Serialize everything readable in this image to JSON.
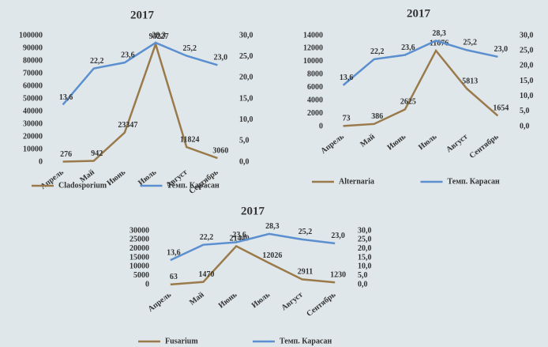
{
  "chart_data": [
    {
      "type": "line",
      "title": "2017",
      "categories": [
        "Апрель",
        "Май",
        "Июнь",
        "Июль",
        "Август",
        "Сентябрь"
      ],
      "series": [
        {
          "name": "Cladosporium",
          "color": "#9a7a4a",
          "values": [
            276,
            942,
            23347,
            93227,
            11824,
            3060
          ]
        },
        {
          "name": "Темп. Карасан",
          "color": "#5b8fd0",
          "axis": "y2",
          "values": [
            13.6,
            22.2,
            23.6,
            28.3,
            25.2,
            23.0
          ],
          "value_labels": [
            "13,6",
            "22,2",
            "23,6",
            "28,3",
            "25,2",
            "23,0"
          ]
        }
      ],
      "ylim": [
        0,
        100000
      ],
      "yticks": [
        0,
        10000,
        20000,
        30000,
        40000,
        50000,
        60000,
        70000,
        80000,
        90000,
        100000
      ],
      "y2lim": [
        0,
        30
      ],
      "y2ticks": [
        {
          "value": 0,
          "label": "0,0"
        },
        {
          "value": 5,
          "label": "5,0"
        },
        {
          "value": 10,
          "label": "10,0"
        },
        {
          "value": 15,
          "label": "15,0"
        },
        {
          "value": 20,
          "label": "20,0"
        },
        {
          "value": 25,
          "label": "25,0"
        },
        {
          "value": 30,
          "label": "30,0"
        }
      ],
      "legend": "bottom"
    },
    {
      "type": "line",
      "title": "2017",
      "categories": [
        "Апрель",
        "Май",
        "Июнь",
        "Июль",
        "Август",
        "Сентябрь"
      ],
      "series": [
        {
          "name": "Alternaria",
          "color": "#9a7a4a",
          "values": [
            73,
            386,
            2625,
            11676,
            5813,
            1654
          ]
        },
        {
          "name": "Темп. Карасан",
          "color": "#5b8fd0",
          "axis": "y2",
          "values": [
            13.6,
            22.2,
            23.6,
            28.3,
            25.2,
            23.0
          ],
          "value_labels": [
            "13,6",
            "22,2",
            "23,6",
            "28,3",
            "25,2",
            "23,0"
          ]
        }
      ],
      "ylim": [
        0,
        14000
      ],
      "yticks": [
        0,
        2000,
        4000,
        6000,
        8000,
        10000,
        12000,
        14000
      ],
      "y2lim": [
        0,
        30
      ],
      "y2ticks": [
        {
          "value": 0,
          "label": "0,0"
        },
        {
          "value": 5,
          "label": "5,0"
        },
        {
          "value": 10,
          "label": "10,0"
        },
        {
          "value": 15,
          "label": "15,0"
        },
        {
          "value": 20,
          "label": "20,0"
        },
        {
          "value": 25,
          "label": "25,0"
        },
        {
          "value": 30,
          "label": "30,0"
        }
      ],
      "legend": "bottom"
    },
    {
      "type": "line",
      "title": "2017",
      "categories": [
        "Апрель",
        "Май",
        "Июнь",
        "Июль",
        "Август",
        "Сентябрь"
      ],
      "series": [
        {
          "name": "Fusarium",
          "color": "#9a7a4a",
          "values": [
            63,
            1470,
            21440,
            12026,
            2911,
            1230
          ]
        },
        {
          "name": "Темп. Карасан",
          "color": "#5b8fd0",
          "axis": "y2",
          "values": [
            13.6,
            22.2,
            23.6,
            28.3,
            25.2,
            23.0
          ],
          "value_labels": [
            "13,6",
            "22,2",
            "23,6",
            "28,3",
            "25,2",
            "23,0"
          ]
        }
      ],
      "ylim": [
        0,
        30000
      ],
      "yticks": [
        0,
        5000,
        10000,
        15000,
        20000,
        25000,
        30000
      ],
      "y2lim": [
        0,
        30
      ],
      "y2ticks": [
        {
          "value": 0,
          "label": "0,0"
        },
        {
          "value": 5,
          "label": "5,0"
        },
        {
          "value": 10,
          "label": "10,0"
        },
        {
          "value": 15,
          "label": "15,0"
        },
        {
          "value": 20,
          "label": "20,0"
        },
        {
          "value": 25,
          "label": "25,0"
        },
        {
          "value": 30,
          "label": "30,0"
        }
      ],
      "legend": "bottom"
    }
  ]
}
